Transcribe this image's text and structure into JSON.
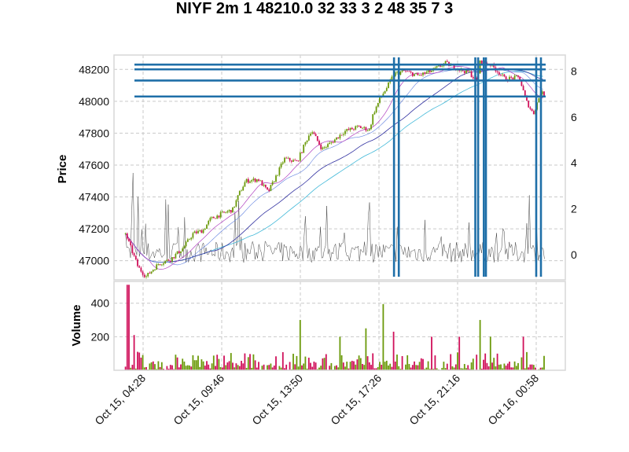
{
  "chart_data": {
    "type": "candlestick",
    "title": "NIYF 2m 1 48210.0 32 33 3 2 48 35 7 3",
    "price_panel": {
      "ylabel": "Price",
      "ylim": [
        46880,
        48290
      ],
      "yticks": [
        47000,
        47200,
        47400,
        47600,
        47800,
        48000,
        48200
      ],
      "secondary_yticks": [
        0,
        2,
        4,
        6,
        8
      ],
      "secondary_ylim": [
        -1.1,
        8.7
      ],
      "hlines": [
        48230,
        48200,
        48130,
        48030
      ],
      "vlines": [
        "Oct 15, 18:10",
        "Oct 15, 18:24",
        "Oct 15, 22:06",
        "Oct 15, 22:14",
        "Oct 15, 22:30",
        "Oct 15, 22:36",
        "Oct 16, 00:58",
        "Oct 16, 01:10"
      ],
      "close_path": [
        [
          "Oct 15, 04:00",
          47170
        ],
        [
          "Oct 15, 04:20",
          46960
        ],
        [
          "Oct 15, 04:40",
          46900
        ],
        [
          "Oct 15, 05:30",
          46980
        ],
        [
          "Oct 15, 06:20",
          47010
        ],
        [
          "Oct 15, 07:10",
          47080
        ],
        [
          "Oct 15, 07:50",
          47170
        ],
        [
          "Oct 15, 08:30",
          47190
        ],
        [
          "Oct 15, 09:00",
          47260
        ],
        [
          "Oct 15, 09:40",
          47290
        ],
        [
          "Oct 15, 10:20",
          47320
        ],
        [
          "Oct 15, 10:40",
          47420
        ],
        [
          "Oct 15, 11:00",
          47500
        ],
        [
          "Oct 15, 11:40",
          47510
        ],
        [
          "Oct 15, 12:10",
          47430
        ],
        [
          "Oct 15, 12:40",
          47550
        ],
        [
          "Oct 15, 13:00",
          47640
        ],
        [
          "Oct 15, 13:40",
          47620
        ],
        [
          "Oct 15, 14:00",
          47720
        ],
        [
          "Oct 15, 14:20",
          47820
        ],
        [
          "Oct 15, 14:50",
          47700
        ],
        [
          "Oct 15, 15:20",
          47750
        ],
        [
          "Oct 15, 15:50",
          47810
        ],
        [
          "Oct 15, 16:30",
          47840
        ],
        [
          "Oct 15, 17:00",
          47820
        ],
        [
          "Oct 15, 17:10",
          47920
        ],
        [
          "Oct 15, 17:30",
          48020
        ],
        [
          "Oct 15, 17:50",
          48090
        ],
        [
          "Oct 15, 18:10",
          48170
        ],
        [
          "Oct 15, 18:40",
          48190
        ],
        [
          "Oct 15, 19:20",
          48160
        ],
        [
          "Oct 15, 20:00",
          48190
        ],
        [
          "Oct 15, 20:40",
          48240
        ],
        [
          "Oct 15, 21:20",
          48200
        ],
        [
          "Oct 15, 21:50",
          48180
        ],
        [
          "Oct 15, 22:10",
          48120
        ],
        [
          "Oct 15, 22:20",
          48250
        ],
        [
          "Oct 15, 22:50",
          48230
        ],
        [
          "Oct 15, 23:30",
          48140
        ],
        [
          "Oct 16, 00:10",
          48150
        ],
        [
          "Oct 16, 00:30",
          48000
        ],
        [
          "Oct 16, 00:50",
          47920
        ],
        [
          "Oct 16, 01:10",
          48060
        ],
        [
          "Oct 16, 01:20",
          48030
        ]
      ]
    },
    "volume_panel": {
      "ylabel": "Volume",
      "ylim": [
        0,
        530
      ],
      "yticks": [
        200,
        400
      ],
      "peaks": [
        [
          "Oct 15, 04:04",
          510,
          "down"
        ],
        [
          "Oct 15, 04:14",
          210,
          "down"
        ],
        [
          "Oct 15, 04:20",
          110,
          "down"
        ],
        [
          "Oct 15, 08:00",
          60,
          "up"
        ],
        [
          "Oct 15, 12:20",
          40,
          "up"
        ],
        [
          "Oct 15, 13:50",
          300,
          "up"
        ],
        [
          "Oct 15, 15:40",
          200,
          "up"
        ],
        [
          "Oct 15, 16:50",
          250,
          "up"
        ],
        [
          "Oct 15, 17:40",
          395,
          "up"
        ],
        [
          "Oct 15, 18:10",
          230,
          "down"
        ],
        [
          "Oct 15, 20:00",
          200,
          "down"
        ],
        [
          "Oct 15, 21:20",
          200,
          "down"
        ],
        [
          "Oct 15, 22:20",
          300,
          "up"
        ],
        [
          "Oct 15, 22:50",
          200,
          "up"
        ],
        [
          "Oct 16, 00:20",
          200,
          "down"
        ]
      ]
    },
    "xticks": [
      "Oct 15, 04:28",
      "Oct 15, 09:46",
      "Oct 15, 13:50",
      "Oct 15, 17:26",
      "Oct 15, 21:16",
      "Oct 16, 00:58"
    ],
    "colors": {
      "up": "#6b9a0a",
      "down": "#d0105a",
      "hline": "#1f6fa8",
      "vline": "#1f6fa8",
      "ma_purple": "#b040c0",
      "ma_blue": "#3030a0",
      "ma_cyan": "#40b8d8",
      "ma_lightblue": "#6080e0",
      "secondary_line": "#444444"
    }
  }
}
